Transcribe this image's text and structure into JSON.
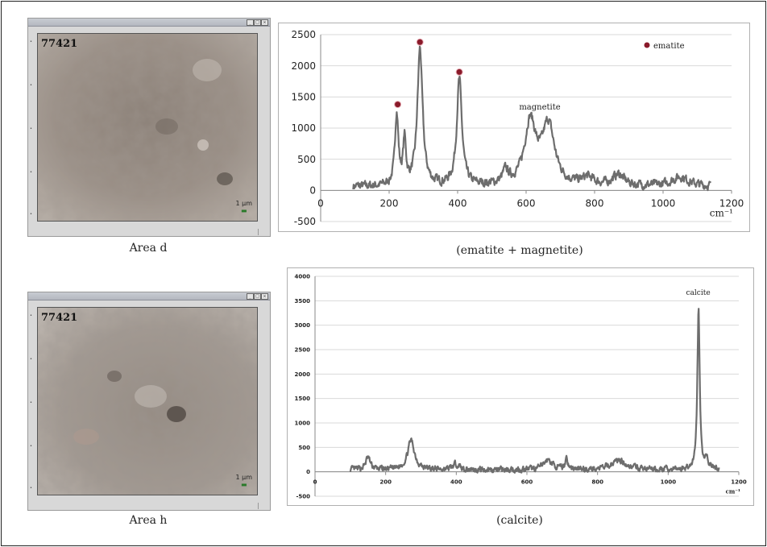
{
  "micrographs": [
    {
      "id": "77421",
      "scale_label": "1 µm",
      "caption": "Area d"
    },
    {
      "id": "77421",
      "scale_label": "1 µm",
      "caption": "Area h"
    }
  ],
  "chart_data": [
    {
      "type": "line",
      "caption": "(ematite + magnetite)",
      "xlabel": "cm⁻¹",
      "xlim": [
        0,
        1200
      ],
      "ylim": [
        -500,
        2500
      ],
      "xticks": [
        0,
        200,
        400,
        600,
        800,
        1000,
        1200
      ],
      "yticks": [
        -500,
        0,
        500,
        1000,
        1500,
        2000,
        2500
      ],
      "grid": "horizontal",
      "series_color": "#6d6d6d",
      "marker_color": "#8a1a2a",
      "legend": {
        "label": "ematite",
        "placement": "top-right"
      },
      "annotations": [
        {
          "text": "magnetite",
          "x": 640,
          "y": 1300
        }
      ],
      "markers": [
        {
          "x": 225,
          "y": 1380
        },
        {
          "x": 290,
          "y": 2380
        },
        {
          "x": 405,
          "y": 1900
        }
      ],
      "baseline": 60,
      "x_range": [
        95,
        1140
      ],
      "peaks": [
        {
          "x": 222,
          "h": 1150,
          "w": 6
        },
        {
          "x": 245,
          "h": 700,
          "w": 5
        },
        {
          "x": 290,
          "h": 2200,
          "w": 9
        },
        {
          "x": 405,
          "h": 1700,
          "w": 9
        },
        {
          "x": 612,
          "h": 1000,
          "w": 20
        },
        {
          "x": 665,
          "h": 950,
          "w": 22
        },
        {
          "x": 540,
          "h": 200,
          "w": 10
        },
        {
          "x": 780,
          "h": 120,
          "w": 20
        },
        {
          "x": 870,
          "h": 180,
          "w": 20
        },
        {
          "x": 1050,
          "h": 150,
          "w": 30
        }
      ],
      "noise": 80
    },
    {
      "type": "line",
      "caption": "(calcite)",
      "xlabel": "cm⁻¹",
      "xlim": [
        0,
        1200
      ],
      "ylim": [
        -500,
        4000
      ],
      "xticks": [
        0,
        200,
        400,
        600,
        800,
        1000,
        1200
      ],
      "yticks": [
        -500,
        0,
        500,
        1000,
        1500,
        2000,
        2500,
        3000,
        3500,
        4000
      ],
      "grid": "horizontal",
      "series_color": "#6d6d6d",
      "annotations": [
        {
          "text": "calcite",
          "x": 1085,
          "y": 3620
        }
      ],
      "baseline": 40,
      "x_range": [
        100,
        1145
      ],
      "peaks": [
        {
          "x": 150,
          "h": 250,
          "w": 8
        },
        {
          "x": 272,
          "h": 600,
          "w": 12
        },
        {
          "x": 400,
          "h": 120,
          "w": 10
        },
        {
          "x": 660,
          "h": 200,
          "w": 15
        },
        {
          "x": 712,
          "h": 250,
          "w": 4
        },
        {
          "x": 860,
          "h": 200,
          "w": 25
        },
        {
          "x": 1086,
          "h": 3300,
          "w": 4
        },
        {
          "x": 1110,
          "h": 150,
          "w": 8
        }
      ],
      "noise": 70
    }
  ]
}
